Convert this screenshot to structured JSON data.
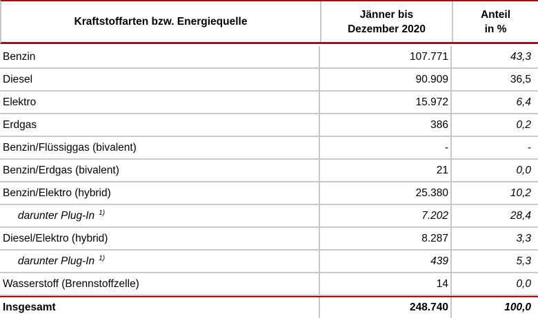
{
  "header": {
    "col1": "Kraftstoffarten bzw. Energiequelle",
    "col2_line1": "Jänner bis",
    "col2_line2": "Dezember 2020",
    "col3_line1": "Anteil",
    "col3_line2": "in %"
  },
  "rows": [
    {
      "label": "Benzin",
      "value": "107.771",
      "share": "43,3"
    },
    {
      "label": "Diesel",
      "value": "90.909",
      "share": "36,5"
    },
    {
      "label": "Elektro",
      "value": "15.972",
      "share": "6,4"
    },
    {
      "label": "Erdgas",
      "value": "386",
      "share": "0,2"
    },
    {
      "label": "Benzin/Flüssiggas (bivalent)",
      "value": "-",
      "share": "-"
    },
    {
      "label": "Benzin/Erdgas (bivalent)",
      "value": "21",
      "share": "0,0"
    },
    {
      "label": "Benzin/Elektro (hybrid)",
      "value": "25.380",
      "share": "10,2"
    },
    {
      "label": "darunter Plug-In",
      "footnote": "1)",
      "value": "7.202",
      "share": "28,4"
    },
    {
      "label": "Diesel/Elektro (hybrid)",
      "value": "8.287",
      "share": "3,3"
    },
    {
      "label": "darunter Plug-In",
      "footnote": "1)",
      "value": "439",
      "share": "5,3"
    },
    {
      "label": "Wasserstoff (Brennstoffzelle)",
      "value": "14",
      "share": "0,0"
    }
  ],
  "total": {
    "label": "Insgesamt",
    "value": "248.740",
    "share": "100,0"
  }
}
